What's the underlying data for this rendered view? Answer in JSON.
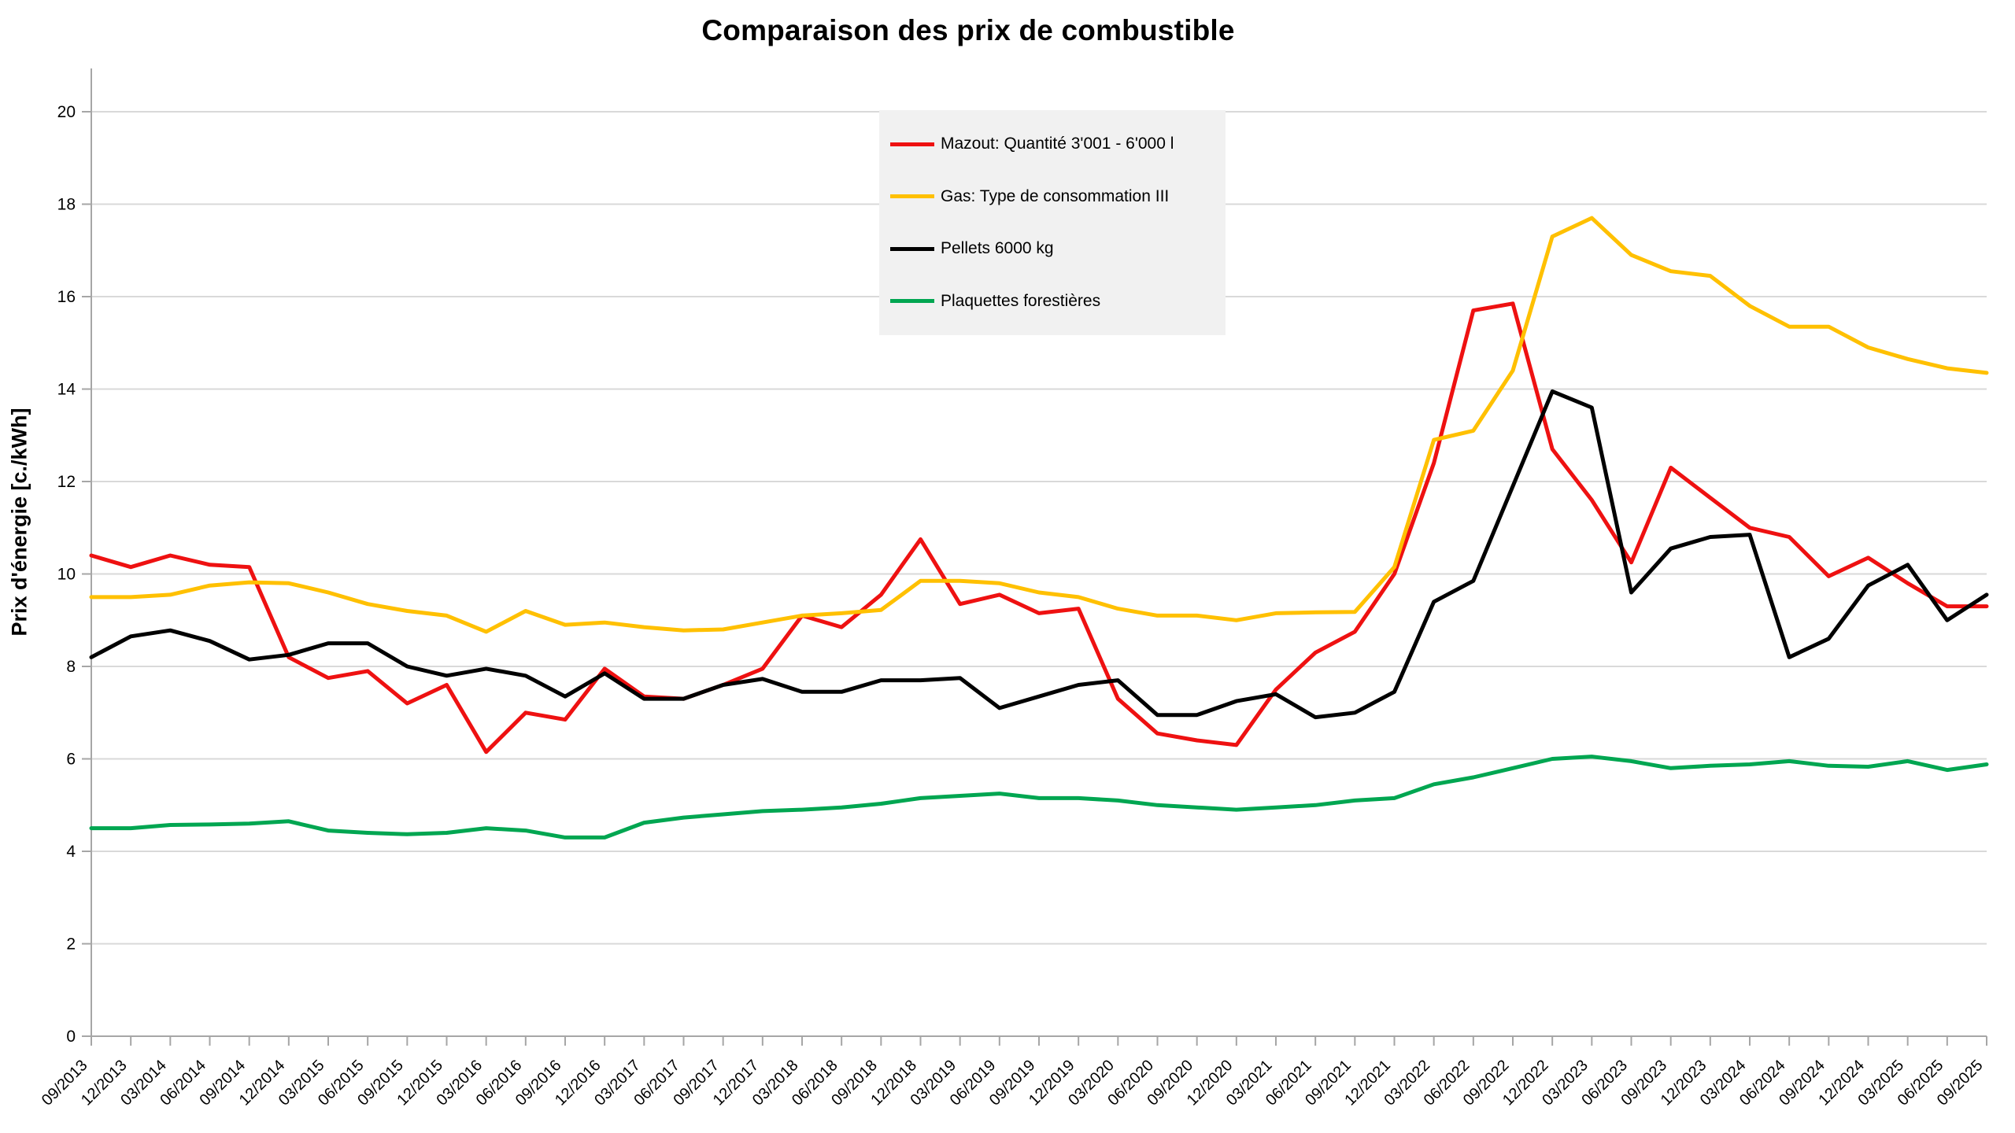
{
  "chart_data": {
    "type": "line",
    "title": "Comparaison des prix de combustible",
    "ylabel": "Prix d'énergie [c./kWh]",
    "xlabel": "",
    "ylim": [
      0,
      20
    ],
    "ytick_step": 2,
    "grid": "horizontal",
    "legend_position": "top-center",
    "categories": [
      "09/2013",
      "12/2013",
      "03/2014",
      "06/2014",
      "09/2014",
      "12/2014",
      "03/2015",
      "06/2015",
      "09/2015",
      "12/2015",
      "03/2016",
      "06/2016",
      "09/2016",
      "12/2016",
      "03/2017",
      "06/2017",
      "09/2017",
      "12/2017",
      "03/2018",
      "06/2018",
      "09/2018",
      "12/2018",
      "03/2019",
      "06/2019",
      "09/2019",
      "12/2019",
      "03/2020",
      "06/2020",
      "09/2020",
      "12/2020",
      "03/2021",
      "06/2021",
      "09/2021",
      "12/2021",
      "03/2022",
      "06/2022",
      "09/2022",
      "12/2022",
      "03/2023",
      "06/2023",
      "09/2023",
      "12/2023",
      "03/2024",
      "06/2024",
      "09/2024",
      "12/2024",
      "03/2025",
      "06/2025",
      "09/2025"
    ],
    "series": [
      {
        "name": "Mazout: Quantité 3'001 - 6'000 l",
        "color": "#ee1111",
        "values": [
          10.4,
          10.15,
          10.4,
          10.2,
          10.15,
          8.2,
          7.75,
          7.9,
          7.2,
          7.6,
          6.15,
          7.0,
          6.85,
          7.95,
          7.35,
          7.3,
          7.6,
          7.95,
          9.1,
          8.85,
          9.55,
          10.75,
          9.35,
          9.55,
          9.15,
          9.25,
          7.3,
          6.55,
          6.4,
          6.3,
          7.5,
          8.3,
          8.75,
          10.0,
          12.4,
          15.7,
          15.85,
          12.7,
          11.6,
          10.25,
          12.3,
          11.65,
          11.0,
          10.8,
          9.95,
          10.35,
          9.8,
          9.3,
          9.3
        ]
      },
      {
        "name": "Gas: Type de consommation III",
        "color": "#ffc000",
        "values": [
          9.5,
          9.5,
          9.55,
          9.75,
          9.82,
          9.8,
          9.6,
          9.35,
          9.2,
          9.1,
          8.75,
          9.2,
          8.9,
          8.95,
          8.85,
          8.78,
          8.8,
          8.95,
          9.1,
          9.15,
          9.22,
          9.85,
          9.85,
          9.8,
          9.6,
          9.5,
          9.25,
          9.1,
          9.1,
          9.0,
          9.15,
          9.17,
          9.18,
          10.15,
          12.9,
          13.1,
          14.4,
          17.3,
          17.7,
          16.9,
          16.55,
          16.45,
          15.8,
          15.35,
          15.35,
          14.9,
          14.65,
          14.45,
          14.35
        ]
      },
      {
        "name": "Pellets 6000 kg",
        "color": "#000000",
        "values": [
          8.2,
          8.65,
          8.78,
          8.55,
          8.15,
          8.25,
          8.5,
          8.5,
          8.0,
          7.8,
          7.95,
          7.8,
          7.35,
          7.85,
          7.3,
          7.3,
          7.6,
          7.73,
          7.45,
          7.45,
          7.7,
          7.7,
          7.75,
          7.1,
          7.35,
          7.6,
          7.7,
          6.95,
          6.95,
          7.25,
          7.4,
          6.9,
          7.0,
          7.45,
          9.4,
          9.85,
          11.9,
          13.95,
          13.6,
          9.6,
          10.55,
          10.8,
          10.85,
          8.2,
          8.6,
          9.75,
          10.2,
          9.0,
          9.55
        ]
      },
      {
        "name": "Plaquettes forestières",
        "color": "#00a651",
        "values": [
          4.5,
          4.5,
          4.57,
          4.58,
          4.6,
          4.65,
          4.45,
          4.4,
          4.37,
          4.4,
          4.5,
          4.45,
          4.3,
          4.3,
          4.62,
          4.73,
          4.8,
          4.87,
          4.9,
          4.95,
          5.03,
          5.15,
          5.2,
          5.25,
          5.15,
          5.15,
          5.1,
          5.0,
          4.95,
          4.9,
          4.95,
          5.0,
          5.1,
          5.15,
          5.45,
          5.6,
          5.8,
          6.0,
          6.05,
          5.95,
          5.8,
          5.85,
          5.88,
          5.95,
          5.85,
          5.83,
          5.95,
          5.76,
          5.88
        ]
      }
    ],
    "colors": {
      "gridline": "#d9d9d9",
      "axis": "#a6a6a6",
      "tick_label": "#000000",
      "legend_background": "#f1f1f1"
    }
  }
}
